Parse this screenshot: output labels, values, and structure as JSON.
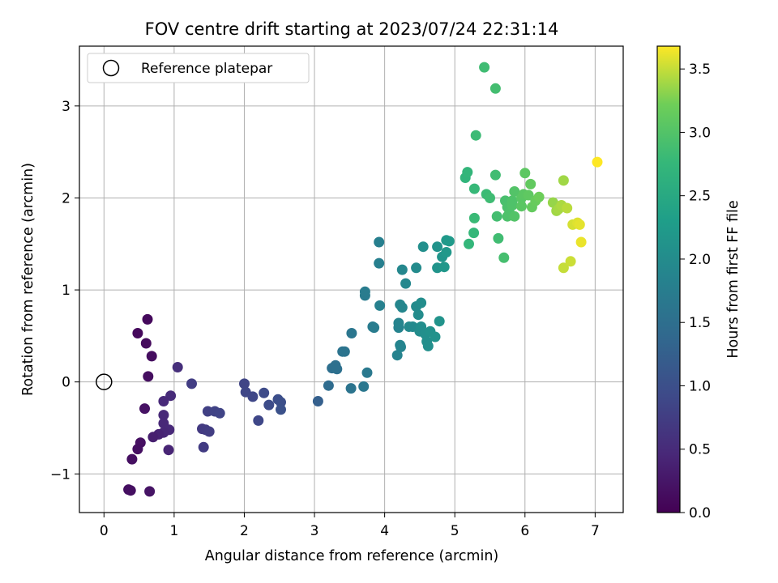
{
  "chart_data": {
    "type": "scatter",
    "title": "FOV centre drift starting at 2023/07/24 22:31:14",
    "xlabel": "Angular distance from reference (arcmin)",
    "ylabel": "Rotation from reference (arcmin)",
    "xlim": [
      -0.35,
      7.4
    ],
    "ylim": [
      -1.42,
      3.65
    ],
    "xticks": [
      0,
      1,
      2,
      3,
      4,
      5,
      6,
      7
    ],
    "yticks": [
      -1,
      0,
      1,
      2,
      3
    ],
    "grid": true,
    "legend": {
      "position": "top-left",
      "entries": [
        "Reference platepar"
      ]
    },
    "colorbar": {
      "label": "Hours from first FF file",
      "range": [
        0,
        3.68
      ],
      "ticks": [
        0.0,
        0.5,
        1.0,
        1.5,
        2.0,
        2.5,
        3.0,
        3.5
      ],
      "colormap": "viridis"
    },
    "reference": {
      "name": "Reference platepar",
      "x": 0,
      "y": 0
    },
    "points": [
      [
        0.62,
        0.68,
        0.1
      ],
      [
        0.48,
        0.53,
        0.1
      ],
      [
        0.6,
        0.42,
        0.12
      ],
      [
        0.68,
        0.28,
        0.14
      ],
      [
        0.63,
        0.06,
        0.15
      ],
      [
        0.58,
        -0.29,
        0.2
      ],
      [
        0.52,
        -0.66,
        0.18
      ],
      [
        0.48,
        -0.73,
        0.17
      ],
      [
        0.4,
        -0.84,
        0.16
      ],
      [
        0.35,
        -1.17,
        0.16
      ],
      [
        0.38,
        -1.18,
        0.17
      ],
      [
        0.65,
        -1.19,
        0.22
      ],
      [
        1.05,
        0.16,
        0.55
      ],
      [
        0.95,
        -0.15,
        0.5
      ],
      [
        0.85,
        -0.21,
        0.48
      ],
      [
        0.85,
        -0.36,
        0.47
      ],
      [
        0.85,
        -0.45,
        0.46
      ],
      [
        0.93,
        -0.52,
        0.48
      ],
      [
        0.85,
        -0.55,
        0.45
      ],
      [
        0.78,
        -0.57,
        0.4
      ],
      [
        0.7,
        -0.6,
        0.35
      ],
      [
        0.92,
        -0.74,
        0.42
      ],
      [
        1.25,
        -0.02,
        0.75
      ],
      [
        1.4,
        -0.51,
        0.7
      ],
      [
        1.45,
        -0.52,
        0.72
      ],
      [
        1.5,
        -0.54,
        0.74
      ],
      [
        1.42,
        -0.71,
        0.72
      ],
      [
        1.48,
        -0.32,
        0.78
      ],
      [
        1.58,
        -0.32,
        0.82
      ],
      [
        1.65,
        -0.34,
        0.84
      ],
      [
        2.0,
        -0.02,
        0.85
      ],
      [
        2.02,
        -0.11,
        0.86
      ],
      [
        2.12,
        -0.16,
        0.88
      ],
      [
        2.2,
        -0.42,
        0.88
      ],
      [
        2.28,
        -0.12,
        0.93
      ],
      [
        2.35,
        -0.25,
        0.95
      ],
      [
        2.48,
        -0.19,
        0.98
      ],
      [
        2.52,
        -0.22,
        1.0
      ],
      [
        2.52,
        -0.3,
        1.02
      ],
      [
        3.05,
        -0.21,
        1.25
      ],
      [
        3.2,
        -0.04,
        1.45
      ],
      [
        3.25,
        0.15,
        1.5
      ],
      [
        3.3,
        0.18,
        1.52
      ],
      [
        3.32,
        0.14,
        1.53
      ],
      [
        3.4,
        0.33,
        1.58
      ],
      [
        3.43,
        0.33,
        1.6
      ],
      [
        3.52,
        -0.07,
        1.6
      ],
      [
        3.53,
        0.53,
        1.62
      ],
      [
        3.7,
        -0.05,
        1.65
      ],
      [
        3.75,
        0.1,
        1.68
      ],
      [
        3.72,
        0.94,
        1.72
      ],
      [
        3.72,
        0.98,
        1.73
      ],
      [
        3.83,
        0.6,
        1.72
      ],
      [
        3.85,
        0.59,
        1.73
      ],
      [
        3.92,
        1.52,
        1.78
      ],
      [
        3.92,
        1.29,
        1.78
      ],
      [
        3.93,
        0.83,
        1.8
      ],
      [
        4.18,
        0.29,
        1.85
      ],
      [
        4.2,
        0.59,
        1.86
      ],
      [
        4.2,
        0.64,
        1.87
      ],
      [
        4.22,
        0.4,
        1.88
      ],
      [
        4.23,
        0.38,
        1.88
      ],
      [
        4.22,
        0.84,
        1.9
      ],
      [
        4.25,
        0.81,
        1.9
      ],
      [
        4.25,
        1.22,
        1.92
      ],
      [
        4.3,
        1.07,
        1.93
      ],
      [
        4.35,
        0.6,
        1.95
      ],
      [
        4.4,
        0.6,
        1.96
      ],
      [
        4.45,
        1.24,
        1.98
      ],
      [
        4.45,
        0.82,
        1.98
      ],
      [
        4.48,
        0.73,
        2.0
      ],
      [
        4.5,
        0.55,
        2.0
      ],
      [
        4.52,
        0.6,
        2.02
      ],
      [
        4.52,
        0.86,
        2.02
      ],
      [
        4.55,
        1.47,
        2.05
      ],
      [
        4.58,
        0.52,
        2.05
      ],
      [
        4.6,
        0.44,
        2.06
      ],
      [
        4.62,
        0.39,
        2.06
      ],
      [
        4.65,
        0.55,
        2.08
      ],
      [
        4.72,
        0.49,
        2.1
      ],
      [
        4.75,
        1.47,
        2.12
      ],
      [
        4.75,
        1.24,
        2.14
      ],
      [
        4.78,
        0.66,
        2.12
      ],
      [
        4.82,
        1.36,
        2.16
      ],
      [
        4.85,
        1.25,
        2.18
      ],
      [
        4.88,
        1.41,
        2.2
      ],
      [
        4.88,
        1.54,
        2.22
      ],
      [
        4.92,
        1.53,
        2.24
      ],
      [
        5.15,
        2.22,
        2.7
      ],
      [
        5.18,
        2.28,
        2.72
      ],
      [
        5.2,
        1.5,
        2.74
      ],
      [
        5.27,
        1.62,
        2.76
      ],
      [
        5.28,
        2.1,
        2.78
      ],
      [
        5.28,
        1.78,
        2.8
      ],
      [
        5.3,
        2.68,
        2.82
      ],
      [
        5.42,
        3.42,
        2.85
      ],
      [
        5.45,
        2.04,
        2.82
      ],
      [
        5.5,
        2.0,
        2.84
      ],
      [
        5.58,
        3.19,
        2.88
      ],
      [
        5.58,
        2.25,
        2.86
      ],
      [
        5.6,
        1.8,
        2.88
      ],
      [
        5.62,
        1.56,
        2.86
      ],
      [
        5.7,
        1.35,
        2.9
      ],
      [
        5.72,
        1.97,
        2.92
      ],
      [
        5.75,
        1.8,
        2.95
      ],
      [
        5.75,
        1.9,
        2.94
      ],
      [
        5.78,
        1.84,
        2.96
      ],
      [
        5.82,
        1.92,
        2.98
      ],
      [
        5.82,
        1.97,
        2.97
      ],
      [
        5.85,
        1.8,
        3.0
      ],
      [
        5.85,
        2.07,
        3.0
      ],
      [
        5.95,
        2.0,
        3.05
      ],
      [
        5.95,
        1.91,
        3.06
      ],
      [
        5.98,
        2.04,
        3.07
      ],
      [
        6.0,
        2.27,
        3.08
      ],
      [
        6.05,
        2.03,
        3.1
      ],
      [
        6.08,
        2.15,
        3.12
      ],
      [
        6.1,
        1.9,
        3.14
      ],
      [
        6.15,
        1.97,
        3.16
      ],
      [
        6.2,
        2.01,
        3.2
      ],
      [
        6.4,
        1.95,
        3.35
      ],
      [
        6.45,
        1.86,
        3.38
      ],
      [
        6.48,
        1.88,
        3.4
      ],
      [
        6.52,
        1.92,
        3.42
      ],
      [
        6.55,
        2.19,
        3.38
      ],
      [
        6.55,
        1.24,
        3.5
      ],
      [
        6.6,
        1.89,
        3.46
      ],
      [
        6.65,
        1.31,
        3.52
      ],
      [
        6.68,
        1.71,
        3.55
      ],
      [
        6.75,
        1.73,
        3.58
      ],
      [
        6.78,
        1.71,
        3.6
      ],
      [
        6.8,
        1.52,
        3.62
      ],
      [
        7.03,
        2.39,
        3.68
      ]
    ]
  }
}
